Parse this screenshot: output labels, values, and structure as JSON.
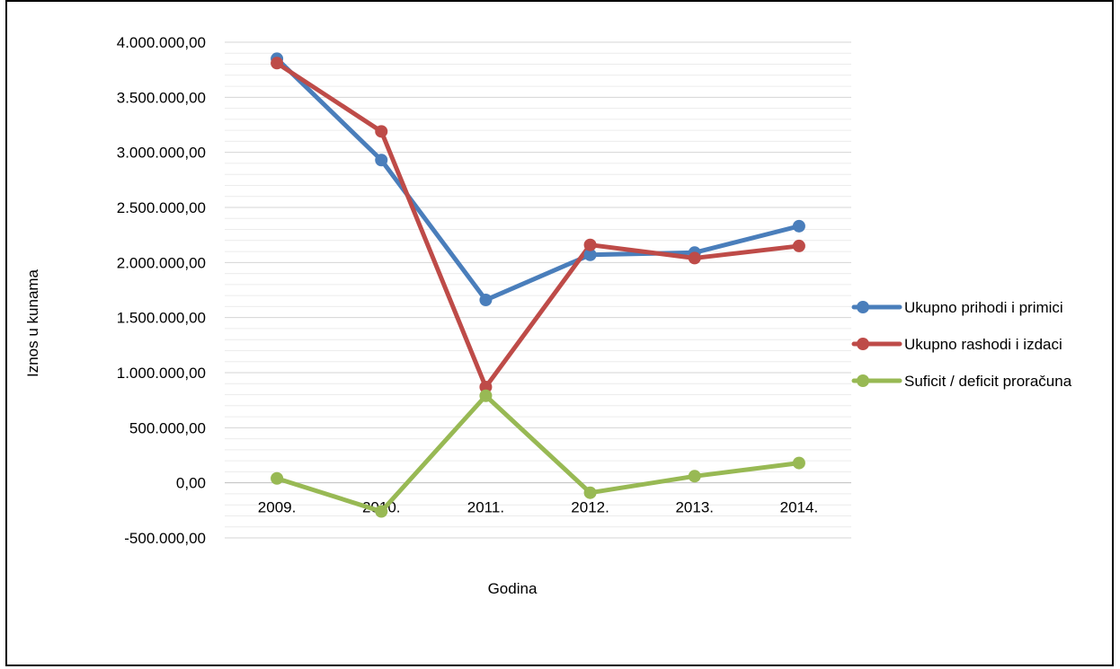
{
  "chart_data": {
    "type": "line",
    "title": "",
    "xlabel": "Godina",
    "ylabel": "Iznos u kunama",
    "categories": [
      "2009.",
      "2010.",
      "2011.",
      "2012.",
      "2013.",
      "2014."
    ],
    "ylim": [
      -500000,
      4000000
    ],
    "ytick_step": 500000,
    "ytick_labels": [
      "-500.000,00",
      "0,00",
      "500.000,00",
      "1.000.000,00",
      "1.500.000,00",
      "2.000.000,00",
      "2.500.000,00",
      "3.000.000,00",
      "3.500.000,00",
      "4.000.000,00"
    ],
    "minor_grid_step": 100000,
    "grid": true,
    "legend": "right",
    "series": [
      {
        "name": "Ukupno prihodi i primici",
        "color": "#4a7ebb",
        "values": [
          3850000,
          2930000,
          1660000,
          2070000,
          2090000,
          2330000
        ]
      },
      {
        "name": "Ukupno rashodi i izdaci",
        "color": "#be4b48",
        "values": [
          3810000,
          3190000,
          870000,
          2160000,
          2040000,
          2150000
        ]
      },
      {
        "name": "Suficit / deficit proračuna",
        "color": "#98b954",
        "values": [
          40000,
          -260000,
          790000,
          -90000,
          60000,
          180000
        ]
      }
    ]
  }
}
